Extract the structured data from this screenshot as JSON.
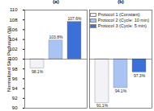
{
  "chart_data": {
    "type": "bar",
    "categories": [
      "(a)",
      "(b)"
    ],
    "y_label": "Normalized Skin Perfusion (%)",
    "baseline": 100,
    "ylim": [
      90,
      110
    ],
    "yticks": [
      90,
      92,
      94,
      96,
      98,
      100,
      102,
      104,
      106,
      108,
      110
    ],
    "grid": false,
    "legend": "top-right",
    "data_labels": true,
    "series": [
      {
        "name": "Protocol 1 (Constant)",
        "color": "#f2f2f7",
        "values": [
          98.1,
          91.1
        ],
        "value_labels": [
          "98.1%",
          "91.1%"
        ]
      },
      {
        "name": "Protocol 2 (Cycle: 10 min)",
        "color": "#a9c3f2",
        "values": [
          103.8,
          94.1
        ],
        "value_labels": [
          "103.8%",
          "94.1%"
        ]
      },
      {
        "name": "Protocol 3 (Cycle: 5 min)",
        "color": "#3c6fd8",
        "values": [
          107.6,
          97.3
        ],
        "value_labels": [
          "107.6%",
          "97.3%"
        ]
      }
    ]
  }
}
